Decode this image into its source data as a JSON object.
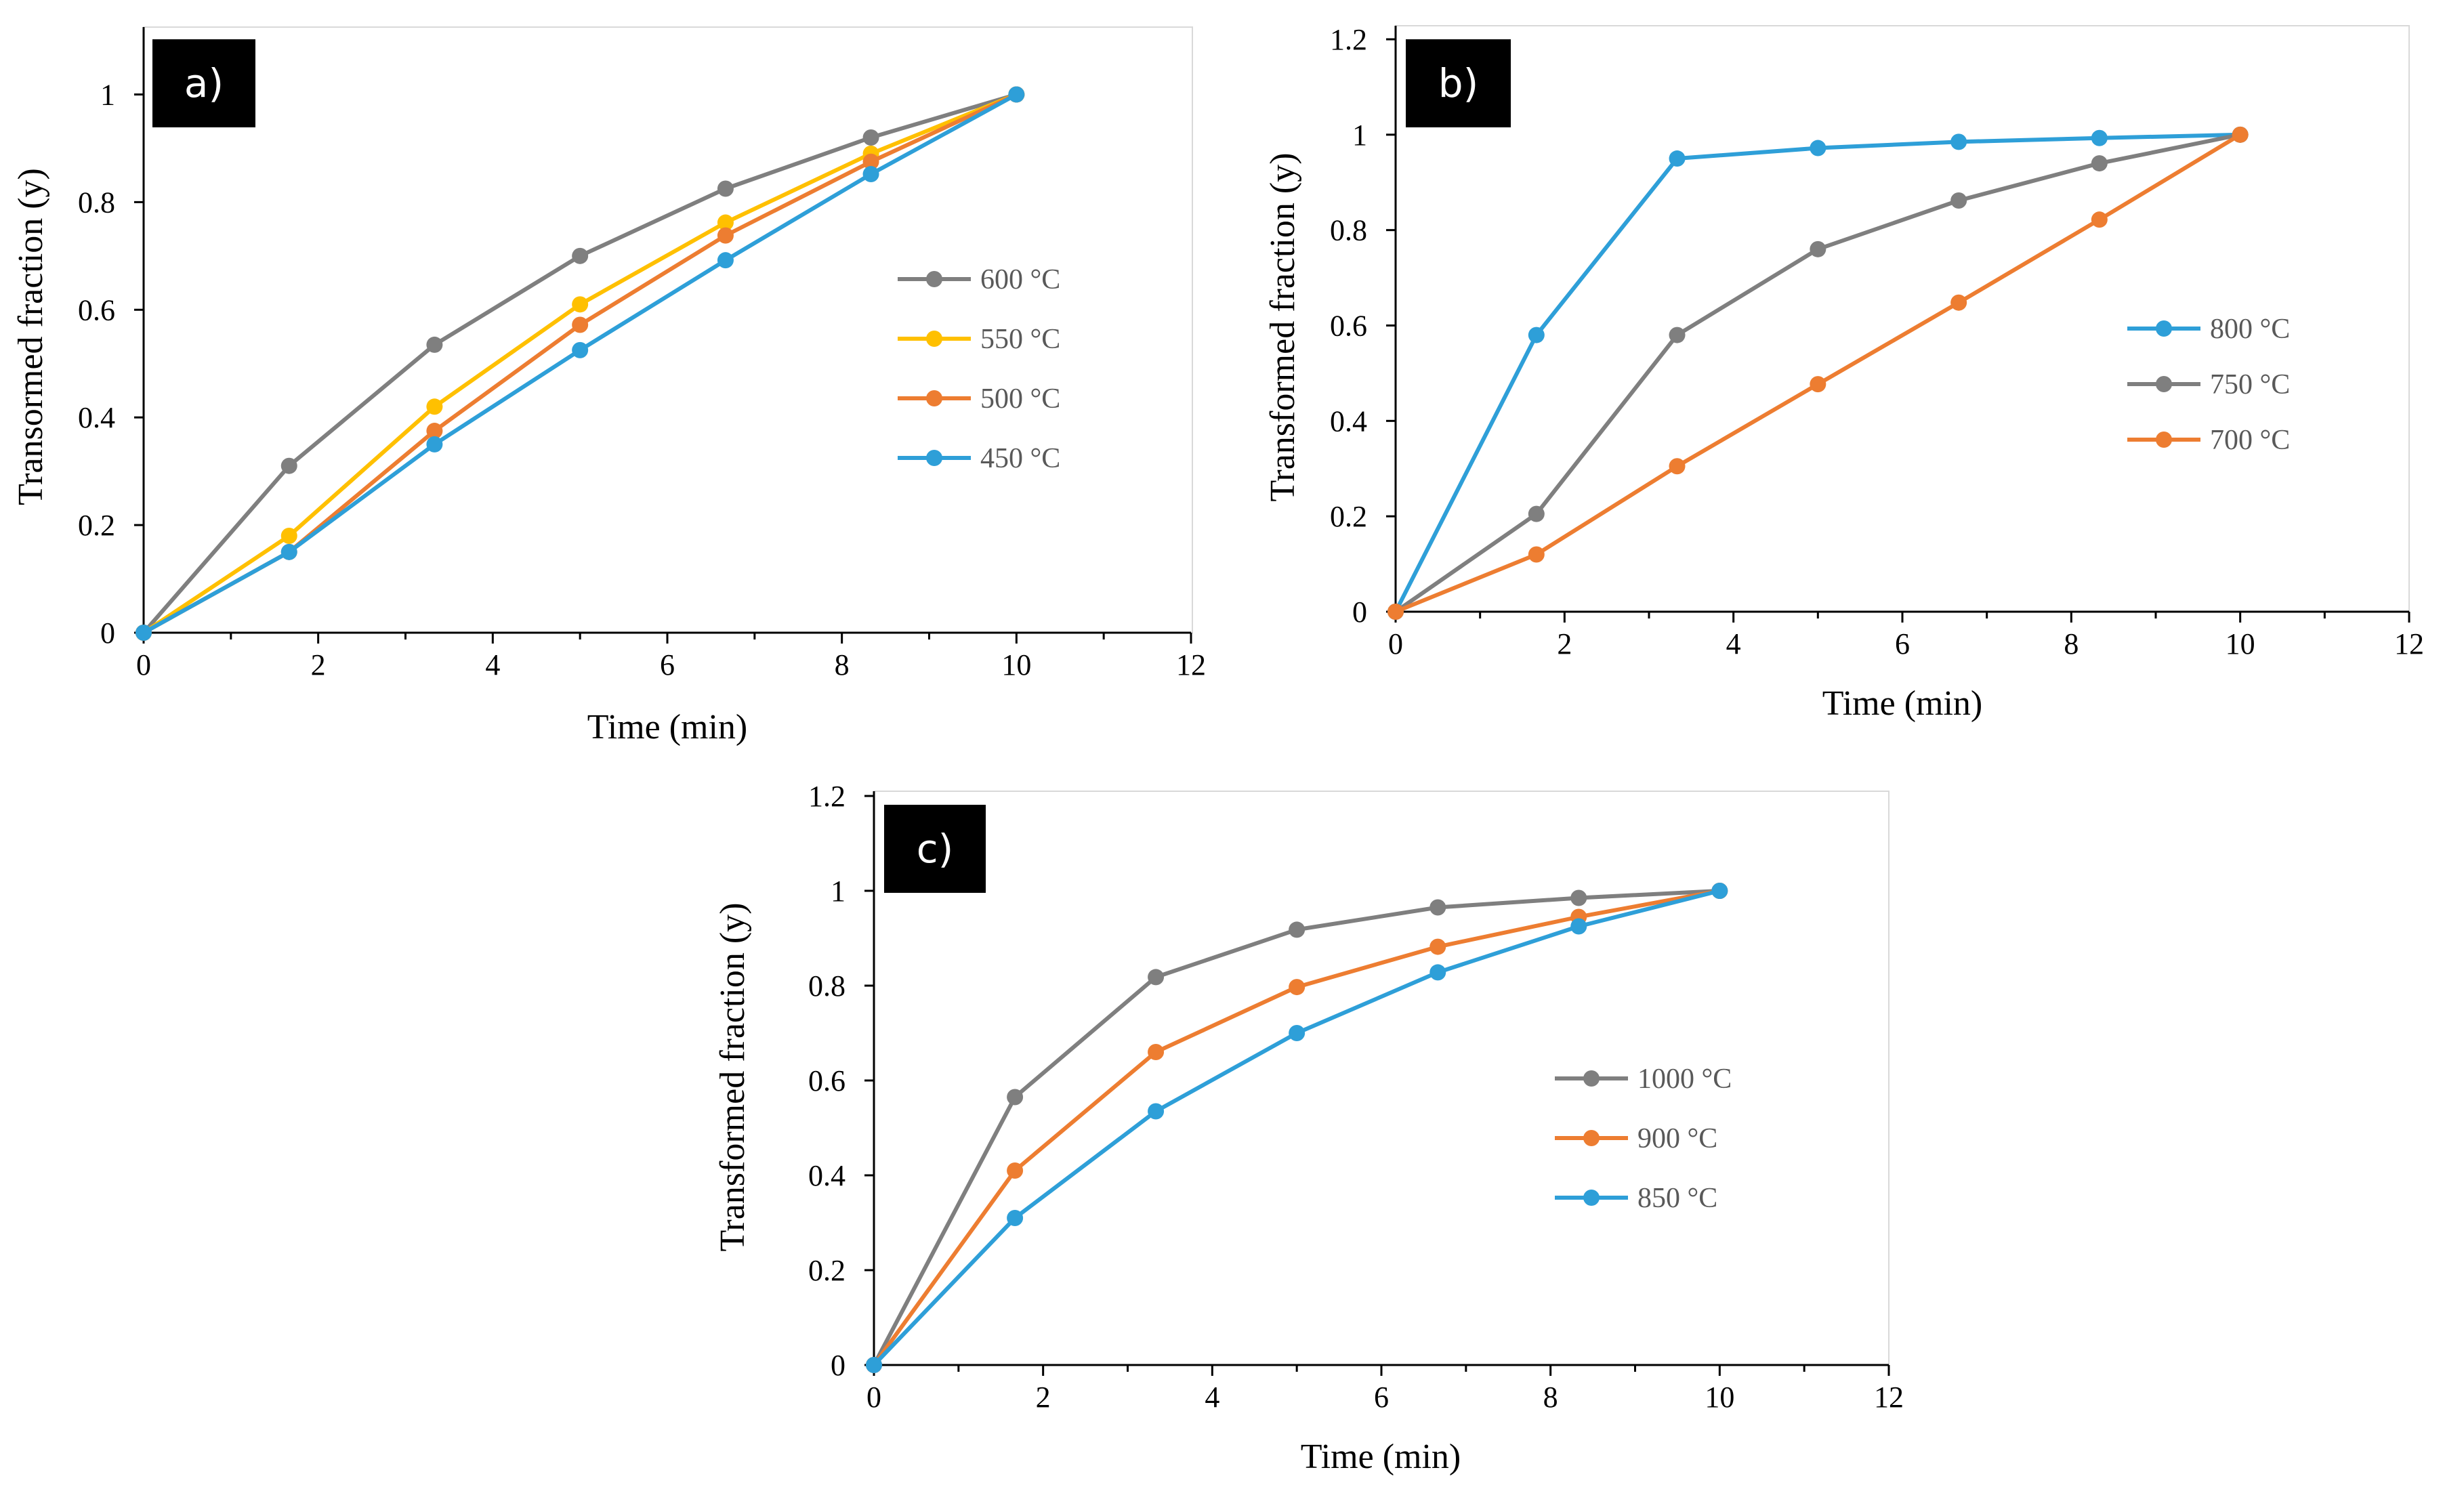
{
  "colors": {
    "gray": "#7f7f7f",
    "yellow": "#ffc000",
    "orange": "#ed7d31",
    "blue": "#2e9fd8"
  },
  "chart_data": [
    {
      "panel": "a)",
      "type": "line",
      "xlabel": "Time (min)",
      "ylabel": "Transormed fraction (y)",
      "xlim": [
        0,
        12
      ],
      "ylim": [
        0,
        1.1
      ],
      "xticks": [
        "0",
        "2",
        "4",
        "6",
        "8",
        "10",
        "12"
      ],
      "yticks": [
        "0",
        "0.2",
        "0.4",
        "0.6",
        "0.8",
        "1"
      ],
      "x": [
        0,
        1.667,
        3.333,
        5,
        6.667,
        8.333,
        10
      ],
      "legend_position": "right-middle",
      "series": [
        {
          "name": "600 °C",
          "color": "#7f7f7f",
          "values": [
            0,
            0.31,
            0.535,
            0.7,
            0.825,
            0.92,
            1.0
          ]
        },
        {
          "name": "550 °C",
          "color": "#ffc000",
          "values": [
            0,
            0.18,
            0.42,
            0.61,
            0.762,
            0.89,
            1.0
          ]
        },
        {
          "name": "500 °C",
          "color": "#ed7d31",
          "values": [
            0,
            0.15,
            0.375,
            0.572,
            0.738,
            0.875,
            1.0
          ]
        },
        {
          "name": "450 °C",
          "color": "#2e9fd8",
          "values": [
            0,
            0.15,
            0.35,
            0.525,
            0.692,
            0.852,
            1.0
          ]
        }
      ]
    },
    {
      "panel": "b)",
      "type": "line",
      "xlabel": "Time (min)",
      "ylabel": "Transformed fraction (y)",
      "xlim": [
        0,
        12
      ],
      "ylim": [
        0,
        1.2
      ],
      "xticks": [
        "0",
        "2",
        "4",
        "6",
        "8",
        "10",
        "12"
      ],
      "yticks": [
        "0",
        "0.2",
        "0.4",
        "0.6",
        "0.8",
        "1",
        "1.2"
      ],
      "x": [
        0,
        1.667,
        3.333,
        5,
        6.667,
        8.333,
        10
      ],
      "legend_position": "right-middle",
      "series": [
        {
          "name": "800 °C",
          "color": "#2e9fd8",
          "values": [
            0,
            0.58,
            0.95,
            0.972,
            0.985,
            0.993,
            1.0
          ]
        },
        {
          "name": "750 °C",
          "color": "#7f7f7f",
          "values": [
            0,
            0.205,
            0.58,
            0.76,
            0.862,
            0.94,
            1.0
          ]
        },
        {
          "name": "700 °C",
          "color": "#ed7d31",
          "values": [
            0,
            0.12,
            0.305,
            0.477,
            0.648,
            0.822,
            1.0
          ]
        }
      ]
    },
    {
      "panel": "c)",
      "type": "line",
      "xlabel": "Time (min)",
      "ylabel": "Transformed fraction (y)",
      "xlim": [
        0,
        12
      ],
      "ylim": [
        0,
        1.2
      ],
      "xticks": [
        "0",
        "2",
        "4",
        "6",
        "8",
        "10",
        "12"
      ],
      "yticks": [
        "0",
        "0.2",
        "0.4",
        "0.6",
        "0.8",
        "1",
        "1.2"
      ],
      "x": [
        0,
        1.667,
        3.333,
        5,
        6.667,
        8.333,
        10
      ],
      "legend_position": "right-middle",
      "series": [
        {
          "name": "1000 °C",
          "color": "#7f7f7f",
          "values": [
            0,
            0.565,
            0.818,
            0.918,
            0.965,
            0.985,
            1.0
          ]
        },
        {
          "name": "900 °C",
          "color": "#ed7d31",
          "values": [
            0,
            0.41,
            0.66,
            0.797,
            0.882,
            0.945,
            1.0
          ]
        },
        {
          "name": "850 °C",
          "color": "#2e9fd8",
          "values": [
            0,
            0.31,
            0.535,
            0.7,
            0.828,
            0.925,
            1.0
          ]
        }
      ]
    }
  ]
}
